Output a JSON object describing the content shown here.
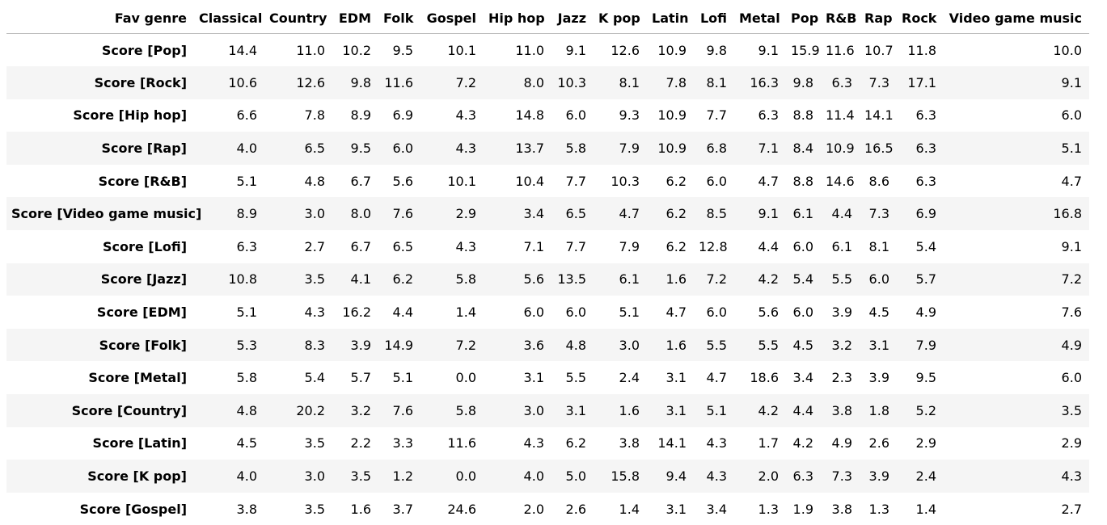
{
  "table": {
    "index_header": "Fav genre",
    "columns": [
      "Classical",
      "Country",
      "EDM",
      "Folk",
      "Gospel",
      "Hip hop",
      "Jazz",
      "K pop",
      "Latin",
      "Lofi",
      "Metal",
      "Pop",
      "R&B",
      "Rap",
      "Rock",
      "Video game music"
    ],
    "rows": [
      {
        "label": "Score [Pop]",
        "values": [
          "14.4",
          "11.0",
          "10.2",
          "9.5",
          "10.1",
          "11.0",
          "9.1",
          "12.6",
          "10.9",
          "9.8",
          "9.1",
          "15.9",
          "11.6",
          "10.7",
          "11.8",
          "10.0"
        ]
      },
      {
        "label": "Score [Rock]",
        "values": [
          "10.6",
          "12.6",
          "9.8",
          "11.6",
          "7.2",
          "8.0",
          "10.3",
          "8.1",
          "7.8",
          "8.1",
          "16.3",
          "9.8",
          "6.3",
          "7.3",
          "17.1",
          "9.1"
        ]
      },
      {
        "label": "Score [Hip hop]",
        "values": [
          "6.6",
          "7.8",
          "8.9",
          "6.9",
          "4.3",
          "14.8",
          "6.0",
          "9.3",
          "10.9",
          "7.7",
          "6.3",
          "8.8",
          "11.4",
          "14.1",
          "6.3",
          "6.0"
        ]
      },
      {
        "label": "Score [Rap]",
        "values": [
          "4.0",
          "6.5",
          "9.5",
          "6.0",
          "4.3",
          "13.7",
          "5.8",
          "7.9",
          "10.9",
          "6.8",
          "7.1",
          "8.4",
          "10.9",
          "16.5",
          "6.3",
          "5.1"
        ]
      },
      {
        "label": "Score [R&B]",
        "values": [
          "5.1",
          "4.8",
          "6.7",
          "5.6",
          "10.1",
          "10.4",
          "7.7",
          "10.3",
          "6.2",
          "6.0",
          "4.7",
          "8.8",
          "14.6",
          "8.6",
          "6.3",
          "4.7"
        ]
      },
      {
        "label": "Score [Video game music]",
        "values": [
          "8.9",
          "3.0",
          "8.0",
          "7.6",
          "2.9",
          "3.4",
          "6.5",
          "4.7",
          "6.2",
          "8.5",
          "9.1",
          "6.1",
          "4.4",
          "7.3",
          "6.9",
          "16.8"
        ]
      },
      {
        "label": "Score [Lofi]",
        "values": [
          "6.3",
          "2.7",
          "6.7",
          "6.5",
          "4.3",
          "7.1",
          "7.7",
          "7.9",
          "6.2",
          "12.8",
          "4.4",
          "6.0",
          "6.1",
          "8.1",
          "5.4",
          "9.1"
        ]
      },
      {
        "label": "Score [Jazz]",
        "values": [
          "10.8",
          "3.5",
          "4.1",
          "6.2",
          "5.8",
          "5.6",
          "13.5",
          "6.1",
          "1.6",
          "7.2",
          "4.2",
          "5.4",
          "5.5",
          "6.0",
          "5.7",
          "7.2"
        ]
      },
      {
        "label": "Score [EDM]",
        "values": [
          "5.1",
          "4.3",
          "16.2",
          "4.4",
          "1.4",
          "6.0",
          "6.0",
          "5.1",
          "4.7",
          "6.0",
          "5.6",
          "6.0",
          "3.9",
          "4.5",
          "4.9",
          "7.6"
        ]
      },
      {
        "label": "Score [Folk]",
        "values": [
          "5.3",
          "8.3",
          "3.9",
          "14.9",
          "7.2",
          "3.6",
          "4.8",
          "3.0",
          "1.6",
          "5.5",
          "5.5",
          "4.5",
          "3.2",
          "3.1",
          "7.9",
          "4.9"
        ]
      },
      {
        "label": "Score [Metal]",
        "values": [
          "5.8",
          "5.4",
          "5.7",
          "5.1",
          "0.0",
          "3.1",
          "5.5",
          "2.4",
          "3.1",
          "4.7",
          "18.6",
          "3.4",
          "2.3",
          "3.9",
          "9.5",
          "6.0"
        ]
      },
      {
        "label": "Score [Country]",
        "values": [
          "4.8",
          "20.2",
          "3.2",
          "7.6",
          "5.8",
          "3.0",
          "3.1",
          "1.6",
          "3.1",
          "5.1",
          "4.2",
          "4.4",
          "3.8",
          "1.8",
          "5.2",
          "3.5"
        ]
      },
      {
        "label": "Score [Latin]",
        "values": [
          "4.5",
          "3.5",
          "2.2",
          "3.3",
          "11.6",
          "4.3",
          "6.2",
          "3.8",
          "14.1",
          "4.3",
          "1.7",
          "4.2",
          "4.9",
          "2.6",
          "2.9",
          "2.9"
        ]
      },
      {
        "label": "Score [K pop]",
        "values": [
          "4.0",
          "3.0",
          "3.5",
          "1.2",
          "0.0",
          "4.0",
          "5.0",
          "15.8",
          "9.4",
          "4.3",
          "2.0",
          "6.3",
          "7.3",
          "3.9",
          "2.4",
          "4.3"
        ]
      },
      {
        "label": "Score [Gospel]",
        "values": [
          "3.8",
          "3.5",
          "1.6",
          "3.7",
          "24.6",
          "2.0",
          "2.6",
          "1.4",
          "3.1",
          "3.4",
          "1.3",
          "1.9",
          "3.8",
          "1.3",
          "1.4",
          "2.7"
        ]
      }
    ]
  }
}
